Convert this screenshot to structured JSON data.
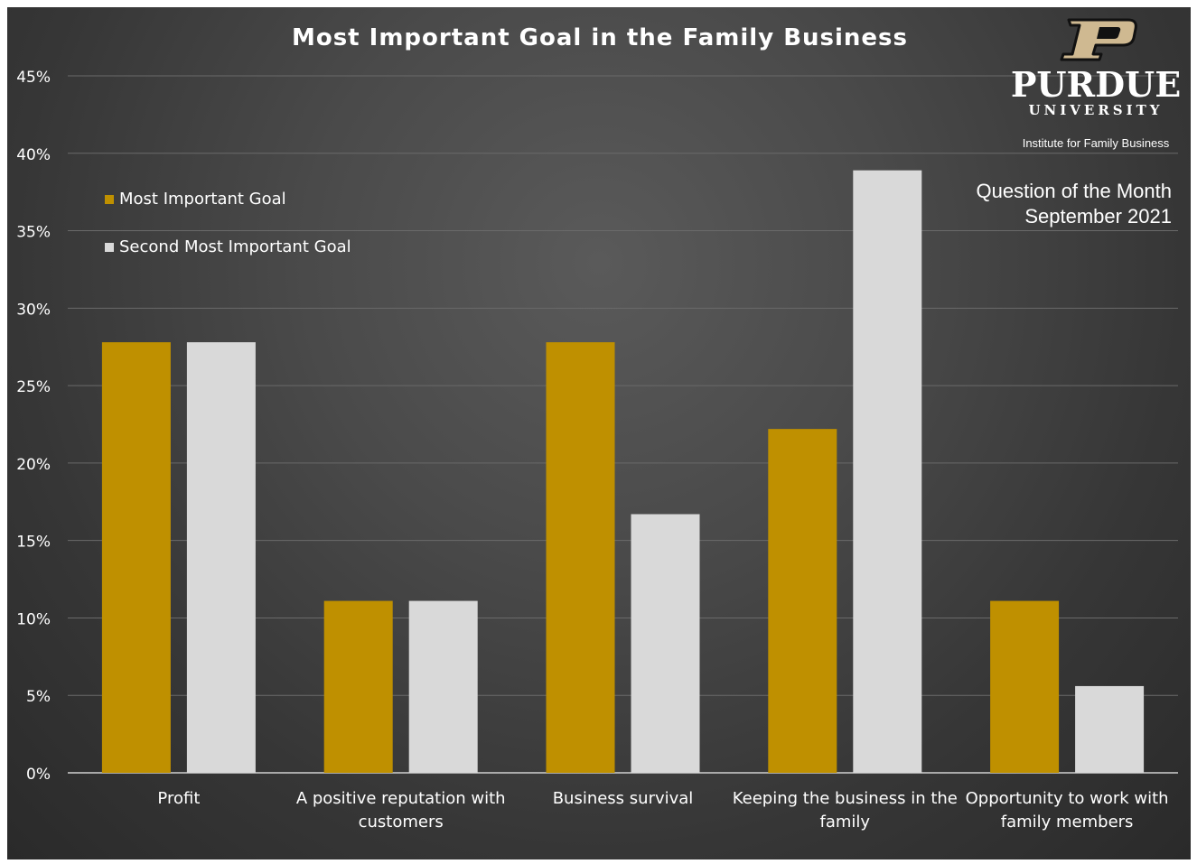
{
  "branding": {
    "wordmark": "PURDUE",
    "university": "UNIVERSITY",
    "institute": "Institute for Family Business"
  },
  "subtitle": {
    "line1": "Question of the Month",
    "line2": "September 2021"
  },
  "colors": {
    "most": "#bf9000",
    "second": "#d9d9d9",
    "grid": "#6a6a6a",
    "text": "#ffffff"
  },
  "chart_data": {
    "type": "bar",
    "title": "Most Important Goal in the Family Business",
    "categories": [
      [
        "Profit"
      ],
      [
        "A positive reputation with",
        "customers"
      ],
      [
        "Business survival"
      ],
      [
        "Keeping the business in the",
        "family"
      ],
      [
        "Opportunity to work with",
        "family members"
      ]
    ],
    "series": [
      {
        "name": "Most Important Goal",
        "values": [
          27.8,
          11.1,
          27.8,
          22.2,
          11.1
        ]
      },
      {
        "name": "Second Most Important Goal",
        "values": [
          27.8,
          11.1,
          16.7,
          38.9,
          5.6
        ]
      }
    ],
    "ylim": [
      0,
      45
    ],
    "yticks": [
      0,
      5,
      10,
      15,
      20,
      25,
      30,
      35,
      40,
      45
    ],
    "ytick_suffix": "%",
    "grid": true,
    "legend_position": "top-left"
  }
}
